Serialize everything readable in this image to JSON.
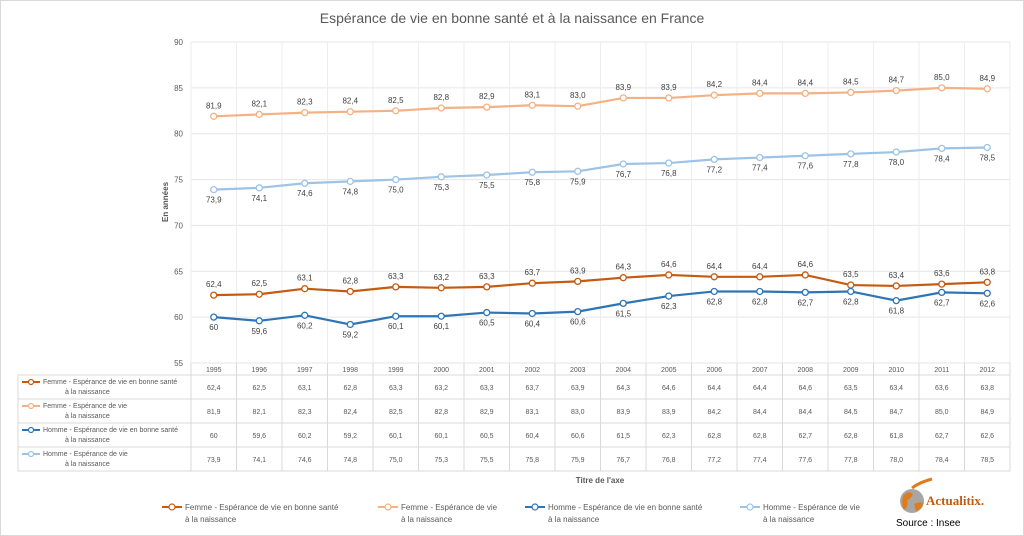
{
  "chart_data": {
    "type": "line",
    "title": "Espérance de vie en bonne santé et à la naissance en France",
    "xlabel": "Titre de l'axe",
    "ylabel": "En années",
    "ylim": [
      55,
      90
    ],
    "yticks": [
      55,
      60,
      65,
      70,
      75,
      80,
      85,
      90
    ],
    "grid": true,
    "legend_position": "bottom",
    "categories": [
      "1995",
      "1996",
      "1997",
      "1998",
      "1999",
      "2000",
      "2001",
      "2002",
      "2003",
      "2004",
      "2005",
      "2006",
      "2007",
      "2008",
      "2009",
      "2010",
      "2011",
      "2012"
    ],
    "series": [
      {
        "name": "Femme - Espérance de vie en bonne santé",
        "name2": "à la naissance",
        "color": "#c55a11",
        "values": [
          62.4,
          62.5,
          63.1,
          62.8,
          63.3,
          63.2,
          63.3,
          63.7,
          63.9,
          64.3,
          64.6,
          64.4,
          64.4,
          64.6,
          63.5,
          63.4,
          63.6,
          63.8
        ],
        "labels": [
          "62,4",
          "62,5",
          "63,1",
          "62,8",
          "63,3",
          "63,2",
          "63,3",
          "63,7",
          "63,9",
          "64,3",
          "64,6",
          "64,4",
          "64,4",
          "64,6",
          "63,5",
          "63,4",
          "63,6",
          "63,8"
        ]
      },
      {
        "name": "Femme - Espérance de vie",
        "name2": "à la naissance",
        "color": "#f4b183",
        "values": [
          81.9,
          82.1,
          82.3,
          82.4,
          82.5,
          82.8,
          82.9,
          83.1,
          83.0,
          83.9,
          83.9,
          84.2,
          84.4,
          84.4,
          84.5,
          84.7,
          85.0,
          84.9
        ],
        "labels": [
          "81,9",
          "82,1",
          "82,3",
          "82,4",
          "82,5",
          "82,8",
          "82,9",
          "83,1",
          "83,0",
          "83,9",
          "83,9",
          "84,2",
          "84,4",
          "84,4",
          "84,5",
          "84,7",
          "85,0",
          "84,9"
        ]
      },
      {
        "name": "Homme - Espérance de vie en bonne santé",
        "name2": "à la naissance",
        "color": "#2e75b6",
        "values": [
          60,
          59.6,
          60.2,
          59.2,
          60.1,
          60.1,
          60.5,
          60.4,
          60.6,
          61.5,
          62.3,
          62.8,
          62.8,
          62.7,
          62.8,
          61.8,
          62.7,
          62.6
        ],
        "labels": [
          "60",
          "59,6",
          "60,2",
          "59,2",
          "60,1",
          "60,1",
          "60,5",
          "60,4",
          "60,6",
          "61,5",
          "62,3",
          "62,8",
          "62,8",
          "62,7",
          "62,8",
          "61,8",
          "62,7",
          "62,6"
        ]
      },
      {
        "name": "Homme - Espérance de vie",
        "name2": "à la naissance",
        "color": "#9dc3e6",
        "values": [
          73.9,
          74.1,
          74.6,
          74.8,
          75.0,
          75.3,
          75.5,
          75.8,
          75.9,
          76.7,
          76.8,
          77.2,
          77.4,
          77.6,
          77.8,
          78.0,
          78.4,
          78.5
        ],
        "labels": [
          "73,9",
          "74,1",
          "74,6",
          "74,8",
          "75,0",
          "75,3",
          "75,5",
          "75,8",
          "75,9",
          "76,7",
          "76,8",
          "77,2",
          "77,4",
          "77,6",
          "77,8",
          "78,0",
          "78,4",
          "78,5"
        ]
      }
    ]
  },
  "branding": {
    "logo_text": "Actualitix.",
    "source": "Source : Insee"
  }
}
